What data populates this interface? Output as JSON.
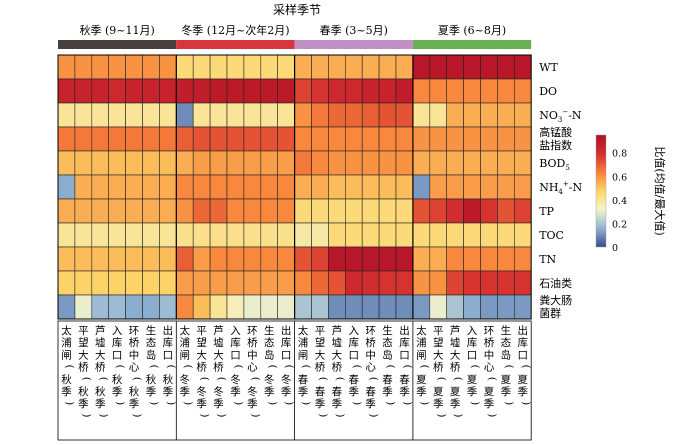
{
  "chart_data": {
    "type": "heatmap",
    "title": "采样季节",
    "seasons": [
      {
        "label": "秋季 (9~11月)",
        "color": "#4a3f3f"
      },
      {
        "label": "冬季 (12月~次年2月)",
        "color": "#d9353c"
      },
      {
        "label": "春季 (3~5月)",
        "color": "#c28fc4"
      },
      {
        "label": "夏季 (6~8月)",
        "color": "#6cae54"
      }
    ],
    "columns": [
      "太浦闸（秋季）",
      "平望大桥（秋季）",
      "芦墟大桥（秋季）",
      "入库口（秋季）",
      "环桥中心（秋季）",
      "生态岛（秋季）",
      "出库口（秋季）",
      "太浦闸（冬季）",
      "平望大桥（冬季）",
      "芦墟大桥（冬季）",
      "入库口（冬季）",
      "环桥中心（冬季）",
      "生态岛（冬季）",
      "出库口（冬季）",
      "太浦闸（春季）",
      "平望大桥（春季）",
      "芦墟大桥（春季）",
      "入库口（春季）",
      "环桥中心（春季）",
      "生态岛（春季）",
      "出库口（春季）",
      "太浦闸（夏季）",
      "平望大桥（夏季）",
      "芦墟大桥（夏季）",
      "入库口（夏季）",
      "环桥中心（夏季）",
      "生态岛（夏季）",
      "出库口（夏季）"
    ],
    "rows": [
      {
        "label": "WT"
      },
      {
        "label": "DO"
      },
      {
        "label": "NO3−-N"
      },
      {
        "label": "高锰酸盐指数"
      },
      {
        "label": "BOD5"
      },
      {
        "label": "NH4+-N"
      },
      {
        "label": "TP"
      },
      {
        "label": "TOC"
      },
      {
        "label": "TN"
      },
      {
        "label": "石油类"
      },
      {
        "label": "粪大肠菌群"
      }
    ],
    "values": [
      [
        0.6,
        0.6,
        0.6,
        0.6,
        0.6,
        0.6,
        0.6,
        0.45,
        0.45,
        0.45,
        0.45,
        0.45,
        0.45,
        0.45,
        0.55,
        0.55,
        0.55,
        0.55,
        0.55,
        0.55,
        0.55,
        0.92,
        0.92,
        0.92,
        0.92,
        0.92,
        0.92,
        0.92
      ],
      [
        0.85,
        0.85,
        0.85,
        0.82,
        0.85,
        0.85,
        0.85,
        0.88,
        0.88,
        0.9,
        0.9,
        0.9,
        0.9,
        0.9,
        0.75,
        0.78,
        0.82,
        0.82,
        0.85,
        0.85,
        0.88,
        0.62,
        0.62,
        0.62,
        0.62,
        0.62,
        0.62,
        0.62
      ],
      [
        0.4,
        0.4,
        0.4,
        0.4,
        0.4,
        0.4,
        0.4,
        0.1,
        0.4,
        0.4,
        0.4,
        0.4,
        0.4,
        0.4,
        0.6,
        0.65,
        0.68,
        0.68,
        0.7,
        0.72,
        0.72,
        0.4,
        0.4,
        0.55,
        0.55,
        0.55,
        0.55,
        0.55
      ],
      [
        0.65,
        0.65,
        0.65,
        0.65,
        0.65,
        0.65,
        0.65,
        0.7,
        0.72,
        0.72,
        0.72,
        0.72,
        0.72,
        0.72,
        0.62,
        0.62,
        0.62,
        0.62,
        0.62,
        0.62,
        0.62,
        0.6,
        0.6,
        0.6,
        0.6,
        0.6,
        0.6,
        0.6
      ],
      [
        0.52,
        0.52,
        0.52,
        0.52,
        0.52,
        0.52,
        0.52,
        0.55,
        0.58,
        0.58,
        0.58,
        0.58,
        0.58,
        0.58,
        0.65,
        0.62,
        0.6,
        0.6,
        0.6,
        0.6,
        0.6,
        0.55,
        0.55,
        0.55,
        0.55,
        0.55,
        0.55,
        0.55
      ],
      [
        0.15,
        0.55,
        0.55,
        0.55,
        0.55,
        0.55,
        0.55,
        0.62,
        0.62,
        0.62,
        0.62,
        0.62,
        0.62,
        0.62,
        0.55,
        0.55,
        0.52,
        0.52,
        0.52,
        0.52,
        0.52,
        0.12,
        0.58,
        0.58,
        0.58,
        0.58,
        0.58,
        0.58
      ],
      [
        0.55,
        0.55,
        0.55,
        0.55,
        0.55,
        0.55,
        0.55,
        0.6,
        0.68,
        0.68,
        0.62,
        0.62,
        0.62,
        0.62,
        0.45,
        0.45,
        0.45,
        0.45,
        0.45,
        0.45,
        0.45,
        0.72,
        0.75,
        0.8,
        0.9,
        0.78,
        0.72,
        0.75
      ],
      [
        0.4,
        0.4,
        0.4,
        0.4,
        0.4,
        0.4,
        0.4,
        0.42,
        0.42,
        0.42,
        0.42,
        0.42,
        0.42,
        0.42,
        0.38,
        0.38,
        0.45,
        0.45,
        0.45,
        0.45,
        0.45,
        0.45,
        0.45,
        0.45,
        0.45,
        0.45,
        0.45,
        0.45
      ],
      [
        0.52,
        0.52,
        0.52,
        0.52,
        0.52,
        0.52,
        0.52,
        0.7,
        0.58,
        0.62,
        0.62,
        0.62,
        0.62,
        0.62,
        0.72,
        0.75,
        0.92,
        0.92,
        0.92,
        0.92,
        0.92,
        0.55,
        0.55,
        0.62,
        0.62,
        0.62,
        0.62,
        0.62
      ],
      [
        0.48,
        0.48,
        0.48,
        0.48,
        0.48,
        0.48,
        0.48,
        0.58,
        0.58,
        0.58,
        0.58,
        0.58,
        0.58,
        0.58,
        0.62,
        0.68,
        0.72,
        0.82,
        0.8,
        0.78,
        0.78,
        0.6,
        0.6,
        0.75,
        0.78,
        0.78,
        0.78,
        0.78
      ],
      [
        0.12,
        0.3,
        0.18,
        0.18,
        0.15,
        0.15,
        0.18,
        0.62,
        0.52,
        0.4,
        0.35,
        0.3,
        0.3,
        0.3,
        0.2,
        0.2,
        0.1,
        0.1,
        0.1,
        0.1,
        0.1,
        0.12,
        0.3,
        0.2,
        0.15,
        0.12,
        0.12,
        0.12
      ]
    ],
    "colorbar": {
      "label": "比值(均值/最大值)",
      "ticks": [
        "0",
        "0.2",
        "0.4",
        "0.6",
        "0.8"
      ],
      "tick_values": [
        0,
        0.2,
        0.4,
        0.6,
        0.8
      ],
      "range": [
        0,
        0.95
      ]
    },
    "colormap": [
      "#3b4a8c",
      "#8fb3d4",
      "#f5f5cc",
      "#fdd56a",
      "#f7813a",
      "#d32d2f",
      "#b01226"
    ]
  }
}
